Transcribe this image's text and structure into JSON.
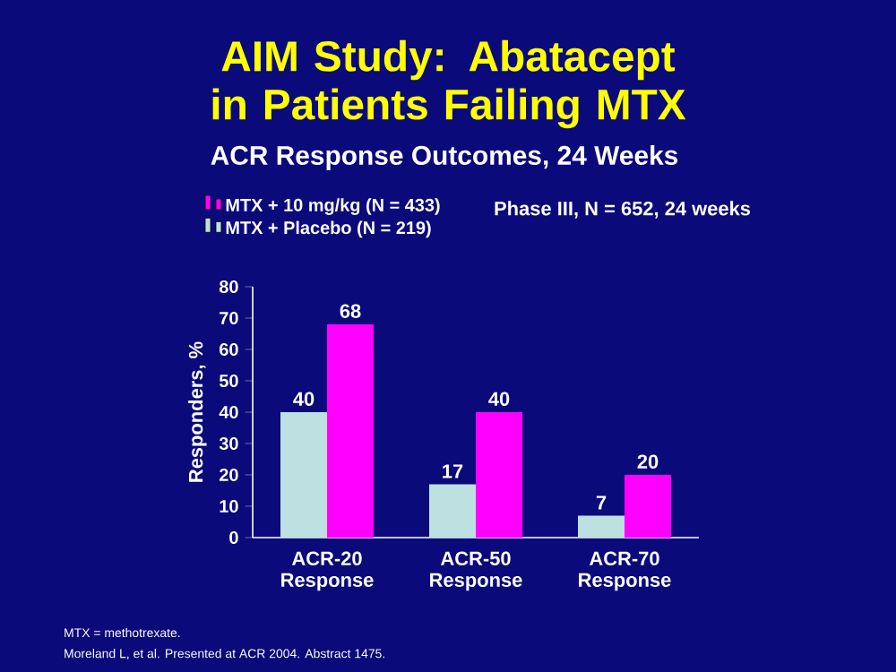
{
  "chart_data": {
    "type": "bar",
    "title": "AIM Study: Abatacept in Patients Failing MTX",
    "subtitle": "ACR Response Outcomes, 24 Weeks",
    "ylabel": "Responders, %",
    "categories": [
      "ACR-20 Response",
      "ACR-50 Response",
      "ACR-70 Response"
    ],
    "series": [
      {
        "name": "MTX + Placebo (N = 219)",
        "color": "#bde0e0",
        "values": [
          40,
          17,
          7
        ]
      },
      {
        "name": "MTX + 10 mg/kg (N = 433)",
        "color": "#ff00ff",
        "values": [
          68,
          40,
          20
        ]
      }
    ],
    "ylim": [
      0,
      80
    ],
    "yticks": [
      0,
      10,
      20,
      30,
      40,
      50,
      60,
      70,
      80
    ],
    "data_labels": true,
    "legend": "top left",
    "annotations": [
      "Phase III, N = 652, 24 weeks",
      "MTX = methotrexate.",
      "Moreland L, et al. Presented at ACR 2004. Abstract 1475."
    ]
  }
}
